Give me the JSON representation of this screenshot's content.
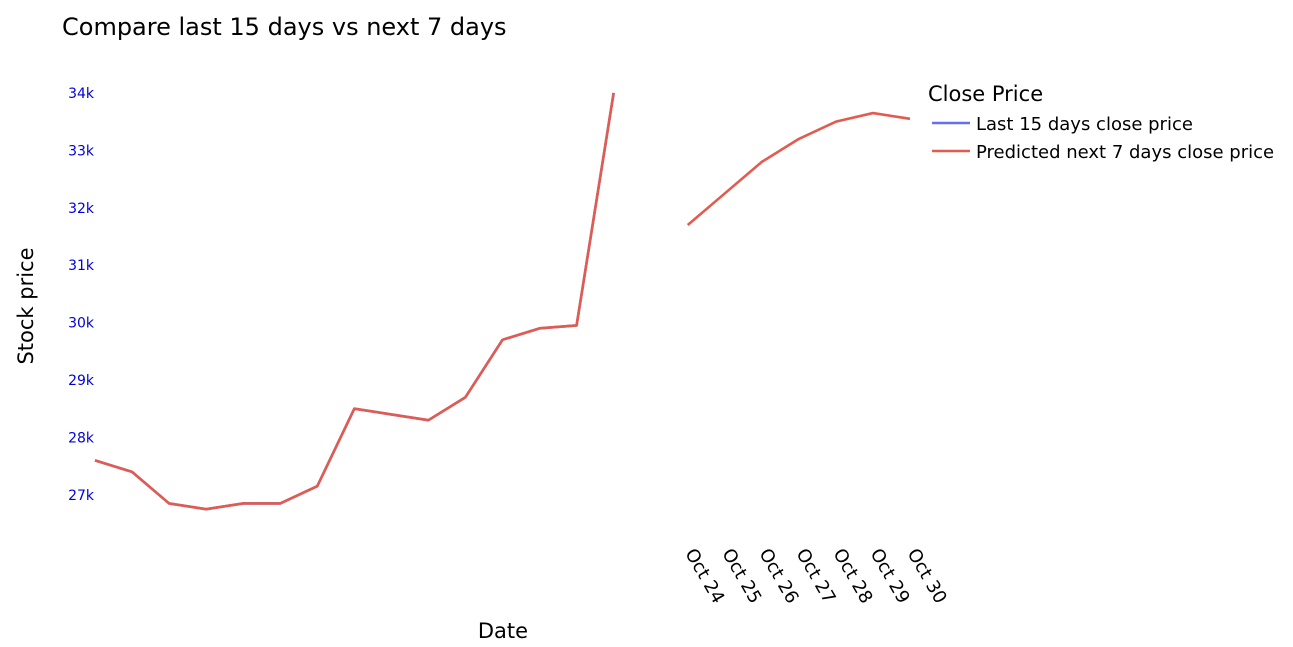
{
  "chart_data": {
    "type": "line",
    "title": "Compare last 15 days vs next 7 days",
    "xlabel": "Date",
    "ylabel": "Stock price",
    "y_ticks": [
      "27k",
      "28k",
      "29k",
      "30k",
      "31k",
      "32k",
      "33k",
      "34k"
    ],
    "ylim": [
      26300,
      34400
    ],
    "x_tick_labels": [
      "Oct 24",
      "Oct 25",
      "Oct 26",
      "Oct 27",
      "Oct 28",
      "Oct 29",
      "Oct 30"
    ],
    "grid": false,
    "legend": {
      "title": "Close Price",
      "position": "top-right"
    },
    "series": [
      {
        "name": "Last 15 days close price",
        "color": "#636efa",
        "y": [
          27600,
          27400,
          26850,
          26750,
          26850,
          26850,
          27150,
          28500,
          28400,
          28300,
          28700,
          29700,
          29900,
          29950,
          34000
        ]
      },
      {
        "name": "Predicted next 7 days close price",
        "color": "#e15c4f",
        "y": [
          27600,
          27400,
          26850,
          26750,
          26850,
          26850,
          27150,
          28500,
          28400,
          28300,
          28700,
          29700,
          29900,
          29950,
          34000,
          null,
          31700,
          32250,
          32800,
          33200,
          33500,
          33650,
          33550
        ]
      }
    ]
  }
}
